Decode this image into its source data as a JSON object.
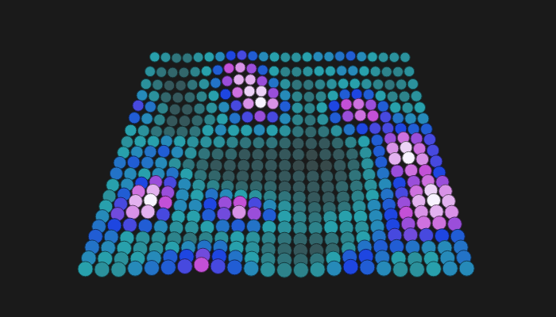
{
  "chart_data": {
    "type": "surface",
    "marker": "circle",
    "tick_labels": false,
    "zlim": [
      0,
      1
    ],
    "z": [
      [
        0.35,
        0.3,
        0.2,
        0.2,
        0.3,
        0.35,
        0.4,
        0.55,
        0.6,
        0.5,
        0.4,
        0.35,
        0.3,
        0.3,
        0.35,
        0.4,
        0.4,
        0.45,
        0.5,
        0.4,
        0.35,
        0.3,
        0.3,
        0.3
      ],
      [
        0.3,
        0.2,
        0.15,
        0.15,
        0.25,
        0.35,
        0.5,
        0.75,
        0.85,
        0.7,
        0.5,
        0.35,
        0.25,
        0.25,
        0.3,
        0.35,
        0.35,
        0.4,
        0.4,
        0.35,
        0.3,
        0.25,
        0.25,
        0.3
      ],
      [
        0.3,
        0.2,
        0.1,
        0.1,
        0.2,
        0.3,
        0.45,
        0.7,
        0.9,
        0.9,
        0.7,
        0.45,
        0.3,
        0.2,
        0.2,
        0.25,
        0.3,
        0.35,
        0.35,
        0.3,
        0.25,
        0.2,
        0.25,
        0.3
      ],
      [
        0.4,
        0.3,
        0.15,
        0.1,
        0.15,
        0.25,
        0.35,
        0.55,
        0.8,
        0.95,
        0.95,
        0.7,
        0.4,
        0.25,
        0.2,
        0.25,
        0.35,
        0.5,
        0.55,
        0.5,
        0.35,
        0.25,
        0.25,
        0.3
      ],
      [
        0.6,
        0.45,
        0.25,
        0.1,
        0.1,
        0.2,
        0.3,
        0.4,
        0.6,
        0.85,
        1.0,
        0.85,
        0.5,
        0.3,
        0.25,
        0.35,
        0.55,
        0.75,
        0.8,
        0.7,
        0.5,
        0.35,
        0.3,
        0.35
      ],
      [
        0.5,
        0.4,
        0.25,
        0.1,
        0.1,
        0.15,
        0.25,
        0.35,
        0.45,
        0.6,
        0.7,
        0.6,
        0.4,
        0.25,
        0.2,
        0.3,
        0.5,
        0.7,
        0.8,
        0.75,
        0.6,
        0.45,
        0.4,
        0.4
      ],
      [
        0.35,
        0.3,
        0.2,
        0.15,
        0.15,
        0.2,
        0.35,
        0.4,
        0.35,
        0.35,
        0.4,
        0.35,
        0.3,
        0.2,
        0.15,
        0.2,
        0.3,
        0.45,
        0.55,
        0.6,
        0.6,
        0.55,
        0.5,
        0.5
      ],
      [
        0.3,
        0.35,
        0.35,
        0.4,
        0.35,
        0.3,
        0.3,
        0.3,
        0.25,
        0.2,
        0.2,
        0.2,
        0.15,
        0.1,
        0.1,
        0.1,
        0.15,
        0.25,
        0.35,
        0.5,
        0.7,
        0.8,
        0.7,
        0.6
      ],
      [
        0.35,
        0.4,
        0.45,
        0.5,
        0.4,
        0.3,
        0.2,
        0.15,
        0.15,
        0.1,
        0.1,
        0.1,
        0.1,
        0.1,
        0.05,
        0.1,
        0.1,
        0.15,
        0.3,
        0.5,
        0.85,
        0.95,
        0.8,
        0.6
      ],
      [
        0.45,
        0.5,
        0.45,
        0.4,
        0.3,
        0.2,
        0.15,
        0.1,
        0.1,
        0.1,
        0.1,
        0.1,
        0.1,
        0.05,
        0.05,
        0.05,
        0.1,
        0.15,
        0.3,
        0.5,
        0.9,
        1.0,
        0.85,
        0.6
      ],
      [
        0.45,
        0.4,
        0.35,
        0.4,
        0.45,
        0.35,
        0.2,
        0.15,
        0.1,
        0.1,
        0.1,
        0.1,
        0.1,
        0.1,
        0.1,
        0.1,
        0.1,
        0.2,
        0.3,
        0.45,
        0.7,
        0.8,
        0.75,
        0.55
      ],
      [
        0.35,
        0.4,
        0.55,
        0.7,
        0.6,
        0.4,
        0.3,
        0.25,
        0.2,
        0.15,
        0.15,
        0.15,
        0.1,
        0.1,
        0.1,
        0.1,
        0.15,
        0.2,
        0.3,
        0.4,
        0.55,
        0.7,
        0.8,
        0.7
      ],
      [
        0.3,
        0.5,
        0.8,
        0.9,
        0.7,
        0.4,
        0.35,
        0.45,
        0.4,
        0.35,
        0.3,
        0.25,
        0.2,
        0.15,
        0.1,
        0.1,
        0.15,
        0.25,
        0.35,
        0.45,
        0.6,
        0.8,
        0.95,
        0.85
      ],
      [
        0.35,
        0.6,
        0.9,
        1.0,
        0.75,
        0.4,
        0.4,
        0.55,
        0.7,
        0.75,
        0.6,
        0.4,
        0.3,
        0.2,
        0.15,
        0.15,
        0.2,
        0.3,
        0.4,
        0.5,
        0.7,
        0.9,
        1.0,
        0.9
      ],
      [
        0.4,
        0.65,
        0.85,
        0.9,
        0.6,
        0.35,
        0.35,
        0.5,
        0.65,
        0.85,
        0.7,
        0.5,
        0.35,
        0.25,
        0.2,
        0.3,
        0.35,
        0.35,
        0.4,
        0.55,
        0.75,
        0.85,
        0.9,
        0.85
      ],
      [
        0.45,
        0.55,
        0.6,
        0.5,
        0.4,
        0.3,
        0.3,
        0.35,
        0.45,
        0.5,
        0.45,
        0.35,
        0.3,
        0.25,
        0.25,
        0.35,
        0.3,
        0.3,
        0.4,
        0.55,
        0.7,
        0.8,
        0.8,
        0.7
      ],
      [
        0.5,
        0.45,
        0.35,
        0.3,
        0.3,
        0.25,
        0.2,
        0.25,
        0.3,
        0.35,
        0.3,
        0.25,
        0.2,
        0.15,
        0.15,
        0.2,
        0.25,
        0.35,
        0.45,
        0.6,
        0.65,
        0.6,
        0.55,
        0.5
      ],
      [
        0.45,
        0.4,
        0.35,
        0.3,
        0.3,
        0.35,
        0.4,
        0.45,
        0.45,
        0.35,
        0.3,
        0.2,
        0.15,
        0.1,
        0.1,
        0.15,
        0.3,
        0.45,
        0.5,
        0.5,
        0.45,
        0.4,
        0.4,
        0.45
      ],
      [
        0.4,
        0.35,
        0.3,
        0.35,
        0.4,
        0.5,
        0.55,
        0.65,
        0.55,
        0.45,
        0.35,
        0.25,
        0.2,
        0.15,
        0.2,
        0.35,
        0.5,
        0.55,
        0.45,
        0.35,
        0.3,
        0.35,
        0.4,
        0.45
      ],
      [
        0.35,
        0.3,
        0.3,
        0.4,
        0.45,
        0.5,
        0.6,
        0.75,
        0.6,
        0.5,
        0.4,
        0.3,
        0.25,
        0.25,
        0.3,
        0.4,
        0.55,
        0.5,
        0.4,
        0.3,
        0.3,
        0.35,
        0.4,
        0.4
      ]
    ]
  }
}
